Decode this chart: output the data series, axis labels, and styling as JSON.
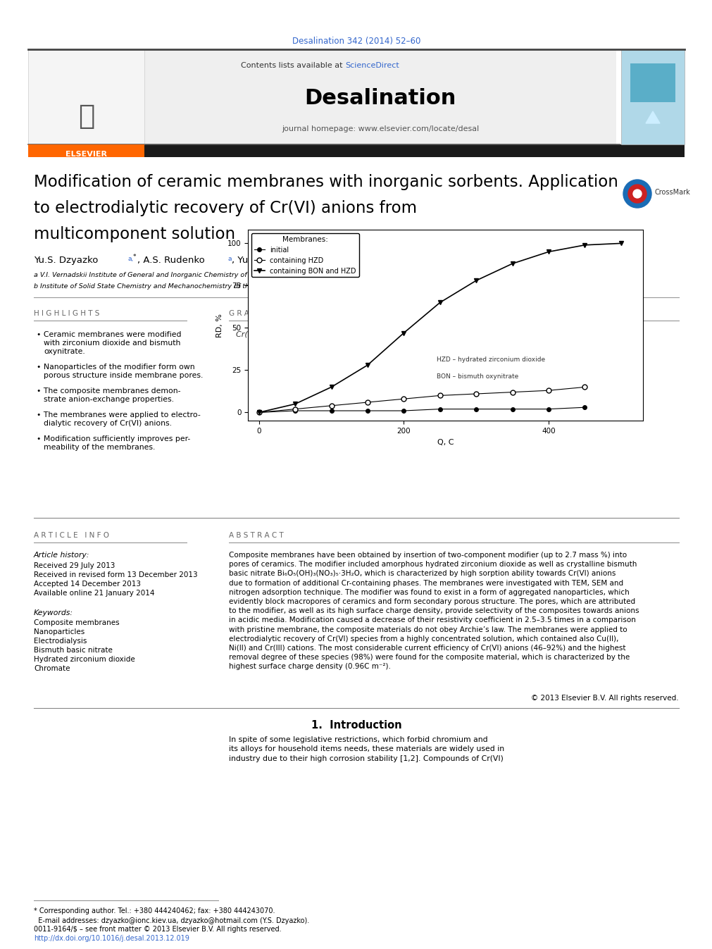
{
  "page_title": "Desalination 342 (2014) 52–60",
  "journal_name": "Desalination",
  "contents_text": "Contents lists available at ScienceDirect",
  "journal_homepage": "journal homepage: www.elsevier.com/locate/desal",
  "article_title_lines": [
    "Modification of ceramic membranes with inorganic sorbents. Application",
    "to electrodialytic recovery of Cr(VI) anions from",
    "multicomponent solution"
  ],
  "affil_a": "a V.I. Vernadskii Institute of General and Inorganic Chemistry of the NAS of Ukraine, Palladin Ave. 32/34, 03142, Kiev 142, Ukraine",
  "affil_b": "b Institute of Solid State Chemistry and Mechanochemistry of the SB RAN, Kutateladze 18, 630128 Novosibirsk, Russian Federation",
  "highlights_title": "H I G H L I G H T S",
  "highlights": [
    "Ceramic membranes were modified\nwith zirconium dioxide and bismuth\noxynitrate.",
    "Nanoparticles of the modifier form own\nporous structure inside membrane pores.",
    "The composite membranes demon-\nstrate anion-exchange properties.",
    "The membranes were applied to electro-\ndialytic recovery of Cr(VI) anions.",
    "Modification sufficiently improves per-\nmeability of the membranes."
  ],
  "graphical_abstract_title": "G R A P H I C A L   A B S T R A C T",
  "graph_title": "Cr(VI) recovery from combining solution using inorganic membranes",
  "graph_ylabel": "RD, %",
  "graph_xlabel": "Q, C",
  "graph_yticks": [
    0,
    25,
    50,
    75,
    100
  ],
  "graph_xticks": [
    0,
    200,
    400
  ],
  "legend_title": "Membranes:",
  "legend_entries": [
    "initial",
    "containing HZD",
    "containing BON and HZD"
  ],
  "series1_x": [
    0,
    50,
    100,
    150,
    200,
    250,
    300,
    350,
    400,
    450
  ],
  "series1_y": [
    0,
    1,
    1,
    1,
    1,
    2,
    2,
    2,
    2,
    3
  ],
  "series2_x": [
    0,
    50,
    100,
    150,
    200,
    250,
    300,
    350,
    400,
    450
  ],
  "series2_y": [
    0,
    2,
    4,
    6,
    8,
    10,
    11,
    12,
    13,
    15
  ],
  "series3_x": [
    0,
    50,
    100,
    150,
    200,
    250,
    300,
    350,
    400,
    450,
    500
  ],
  "series3_y": [
    0,
    5,
    15,
    28,
    47,
    65,
    78,
    88,
    95,
    99,
    100
  ],
  "annotation_hzd": "HZD – hydrated zirconium dioxide",
  "annotation_bon": "BON – bismuth oxynitrate",
  "article_info_title": "A R T I C L E   I N F O",
  "article_history_title": "Article history:",
  "received": "Received 29 July 2013",
  "received_revised": "Received in revised form 13 December 2013",
  "accepted": "Accepted 14 December 2013",
  "available": "Available online 21 January 2014",
  "keywords_title": "Keywords:",
  "keywords": [
    "Composite membranes",
    "Nanoparticles",
    "Electrodialysis",
    "Bismuth basic nitrate",
    "Hydrated zirconium dioxide",
    "Chromate"
  ],
  "abstract_title": "A B S T R A C T",
  "abstract_text": "Composite membranes have been obtained by insertion of two-component modifier (up to 2.7 mass %) into\npores of ceramics. The modifier included amorphous hydrated zirconium dioxide as well as crystalline bismuth\nbasic nitrate Bi₆O₅(OH)₃(NO₃)₅·3H₂O, which is characterized by high sorption ability towards Cr(VI) anions\ndue to formation of additional Cr-containing phases. The membranes were investigated with TEM, SEM and\nnitrogen adsorption technique. The modifier was found to exist in a form of aggregated nanoparticles, which\nevidently block macropores of ceramics and form secondary porous structure. The pores, which are attributed\nto the modifier, as well as its high surface charge density, provide selectivity of the composites towards anions\nin acidic media. Modification caused a decrease of their resistivity coefficient in 2.5–3.5 times in a comparison\nwith pristine membrane, the composite materials do not obey Archie’s law. The membranes were applied to\nelectrodialytic recovery of Cr(VI) species from a highly concentrated solution, which contained also Cu(II),\nNi(II) and Cr(III) cations. The most considerable current efficiency of Cr(VI) anions (46–92%) and the highest\nremoval degree of these species (98%) were found for the composite material, which is characterized by the\nhighest surface charge density (0.96C m⁻²).",
  "copyright": "© 2013 Elsevier B.V. All rights reserved.",
  "intro_section": "1.  Introduction",
  "intro_text": "In spite of some legislative restrictions, which forbid chromium and\nits alloys for household items needs, these materials are widely used in\nindustry due to their high corrosion stability [1,2]. Compounds of Cr(VI)",
  "footer_text_1": "0011-9164/$ – see front matter © 2013 Elsevier B.V. All rights reserved.",
  "footer_text_2": "http://dx.doi.org/10.1016/j.desal.2013.12.019",
  "footnote_1": "* Corresponding author. Tel.: +380 444240462; fax: +380 444243070.",
  "footnote_2": "  E-mail addresses: dzyazko@ionc.kiev.ua, dzyazko@hotmail.com (Y.S. Dzyazko).",
  "bg_color": "#ffffff",
  "header_bg": "#efefef",
  "link_color": "#3366cc",
  "black": "#000000",
  "gray_line": "#888888",
  "elsevier_orange": "#FF6600"
}
